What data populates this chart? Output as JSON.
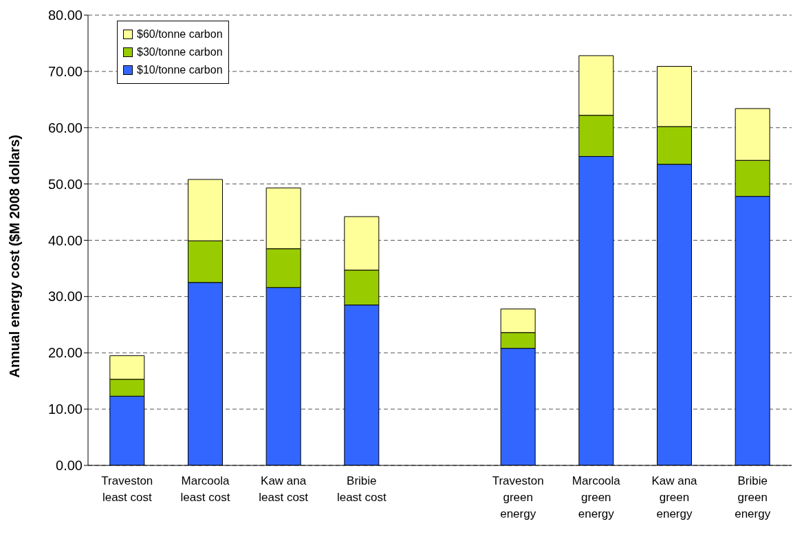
{
  "chart_data": {
    "type": "bar",
    "stacked": true,
    "ylabel": "Annual energy cost ($M 2008 dollars)",
    "categories": [
      "Traveston least cost",
      "Marcoola least cost",
      "Kaw ana least cost",
      "Bribie least cost",
      null,
      "Traveston green energy",
      "Marcoola green energy",
      "Kaw ana green energy",
      "Bribie green energy"
    ],
    "series": [
      {
        "name": "$10/tonne carbon",
        "color": "#3366ff",
        "values": [
          12.3,
          32.5,
          31.6,
          28.5,
          null,
          20.8,
          54.9,
          53.5,
          47.8
        ]
      },
      {
        "name": "$30/tonne carbon",
        "color": "#99cc00",
        "values": [
          3.0,
          7.4,
          6.9,
          6.2,
          null,
          2.8,
          7.3,
          6.7,
          6.4
        ]
      },
      {
        "name": "$60/tonne carbon",
        "color": "#ffff99",
        "values": [
          4.2,
          10.9,
          10.8,
          9.5,
          null,
          4.2,
          10.6,
          10.7,
          9.2
        ]
      }
    ],
    "ylim": [
      0,
      80
    ],
    "yticks": [
      {
        "value": 0,
        "label": "0.00"
      },
      {
        "value": 10,
        "label": "10.00"
      },
      {
        "value": 20,
        "label": "20.00"
      },
      {
        "value": 30,
        "label": "30.00"
      },
      {
        "value": 40,
        "label": "40.00"
      },
      {
        "value": 50,
        "label": "50.00"
      },
      {
        "value": 60,
        "label": "60.00"
      },
      {
        "value": 70,
        "label": "70.00"
      },
      {
        "value": 80,
        "label": "80.00"
      }
    ],
    "grid": "y",
    "legend": "top left"
  }
}
